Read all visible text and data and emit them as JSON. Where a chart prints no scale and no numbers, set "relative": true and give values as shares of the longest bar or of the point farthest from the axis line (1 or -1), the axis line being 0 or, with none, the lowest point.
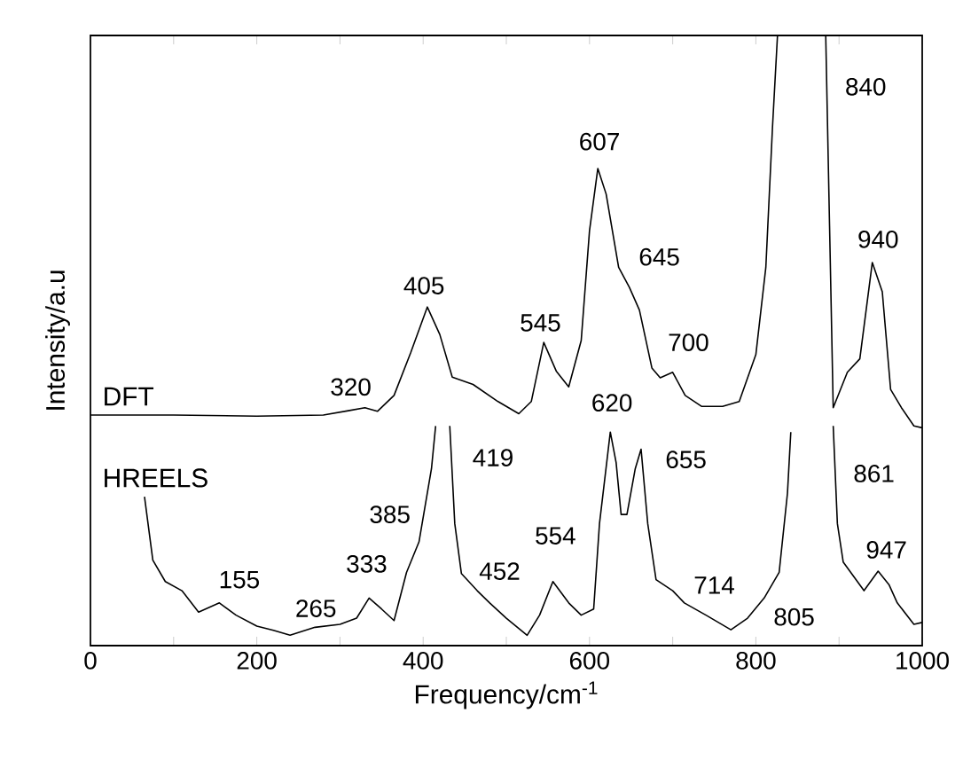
{
  "chart_data": {
    "type": "line",
    "relative": true,
    "xlabel": "Frequency/cm$^{-1}$",
    "ylabel": "Intensity/a.u",
    "xlim": [
      0,
      1000
    ],
    "xticks": [
      0,
      {
        "value": 100,
        "label": null
      },
      200,
      {
        "value": 300,
        "label": null
      },
      400,
      {
        "value": 500,
        "label": null
      },
      600,
      {
        "value": 700,
        "label": null
      },
      800,
      {
        "value": 900,
        "label": null
      },
      1000
    ],
    "series": [
      {
        "name": "DFT",
        "color": "#000000",
        "x": [
          0,
          100,
          200,
          280,
          310,
          330,
          345,
          365,
          385,
          405,
          420,
          435,
          460,
          490,
          515,
          530,
          545,
          560,
          575,
          590,
          600,
          610,
          620,
          635,
          648,
          660,
          675,
          685,
          700,
          715,
          735,
          760,
          780,
          800,
          812,
          820,
          826,
          855,
          884,
          893,
          910,
          925,
          940,
          952,
          962,
          975,
          990,
          1000
        ],
        "values": [
          0.378,
          0.378,
          0.376,
          0.378,
          0.385,
          0.39,
          0.384,
          0.41,
          0.48,
          0.555,
          0.51,
          0.44,
          0.428,
          0.4,
          0.38,
          0.4,
          0.497,
          0.45,
          0.424,
          0.5,
          0.68,
          0.782,
          0.74,
          0.62,
          0.587,
          0.55,
          0.455,
          0.439,
          0.448,
          0.41,
          0.392,
          0.392,
          0.4,
          0.477,
          0.62,
          0.85,
          1.0,
          null,
          1.0,
          0.39,
          0.448,
          0.47,
          0.628,
          0.58,
          0.42,
          0.39,
          0.36,
          0.357
        ]
      },
      {
        "name": "HREELS",
        "color": "#000000",
        "x": [
          65,
          75,
          90,
          110,
          130,
          155,
          175,
          200,
          220,
          240,
          270,
          300,
          320,
          335,
          350,
          365,
          380,
          395,
          410,
          415,
          424,
          432,
          438,
          446,
          465,
          480,
          500,
          525,
          540,
          556,
          575,
          590,
          605,
          612,
          625,
          632,
          638,
          645,
          655,
          662,
          670,
          680,
          700,
          714,
          740,
          770,
          790,
          810,
          828,
          838,
          842,
          868,
          893,
          898,
          905,
          930,
          947,
          960,
          970,
          990,
          1000
        ],
        "values": [
          0.244,
          0.14,
          0.105,
          0.09,
          0.055,
          0.07,
          0.05,
          0.032,
          0.025,
          0.017,
          0.03,
          0.035,
          0.045,
          0.078,
          0.06,
          0.041,
          0.12,
          0.17,
          0.29,
          0.36,
          null,
          0.36,
          0.2,
          0.118,
          0.09,
          0.07,
          0.045,
          0.017,
          0.05,
          0.105,
          0.07,
          0.05,
          0.06,
          0.2,
          0.35,
          0.3,
          0.215,
          0.215,
          0.29,
          0.322,
          0.2,
          0.108,
          0.09,
          0.07,
          0.05,
          0.026,
          0.045,
          0.078,
          0.12,
          0.25,
          0.35,
          null,
          0.36,
          0.2,
          0.137,
          0.09,
          0.122,
          0.1,
          0.07,
          0.035,
          0.038
        ]
      }
    ],
    "annotations": [
      {
        "text": "320",
        "x": 313,
        "y": 0.424
      },
      {
        "text": "405",
        "x": 401,
        "y": 0.59
      },
      {
        "text": "545",
        "x": 541,
        "y": 0.529
      },
      {
        "text": "607",
        "x": 612,
        "y": 0.826
      },
      {
        "text": "645",
        "x": 684,
        "y": 0.637
      },
      {
        "text": "700",
        "x": 719,
        "y": 0.497
      },
      {
        "text": "840",
        "x": 932,
        "y": 0.916
      },
      {
        "text": "940",
        "x": 947,
        "y": 0.666
      },
      {
        "text": "620",
        "x": 627,
        "y": 0.398
      },
      {
        "text": "155",
        "x": 179,
        "y": 0.108
      },
      {
        "text": "265",
        "x": 271,
        "y": 0.061
      },
      {
        "text": "333",
        "x": 332,
        "y": 0.134
      },
      {
        "text": "385",
        "x": 360,
        "y": 0.215
      },
      {
        "text": "419",
        "x": 484,
        "y": 0.308
      },
      {
        "text": "452",
        "x": 492,
        "y": 0.122
      },
      {
        "text": "554",
        "x": 559,
        "y": 0.18
      },
      {
        "text": "655",
        "x": 716,
        "y": 0.305
      },
      {
        "text": "714",
        "x": 750,
        "y": 0.099
      },
      {
        "text": "805",
        "x": 846,
        "y": 0.047
      },
      {
        "text": "861",
        "x": 942,
        "y": 0.282
      },
      {
        "text": "947",
        "x": 957,
        "y": 0.157
      }
    ]
  }
}
